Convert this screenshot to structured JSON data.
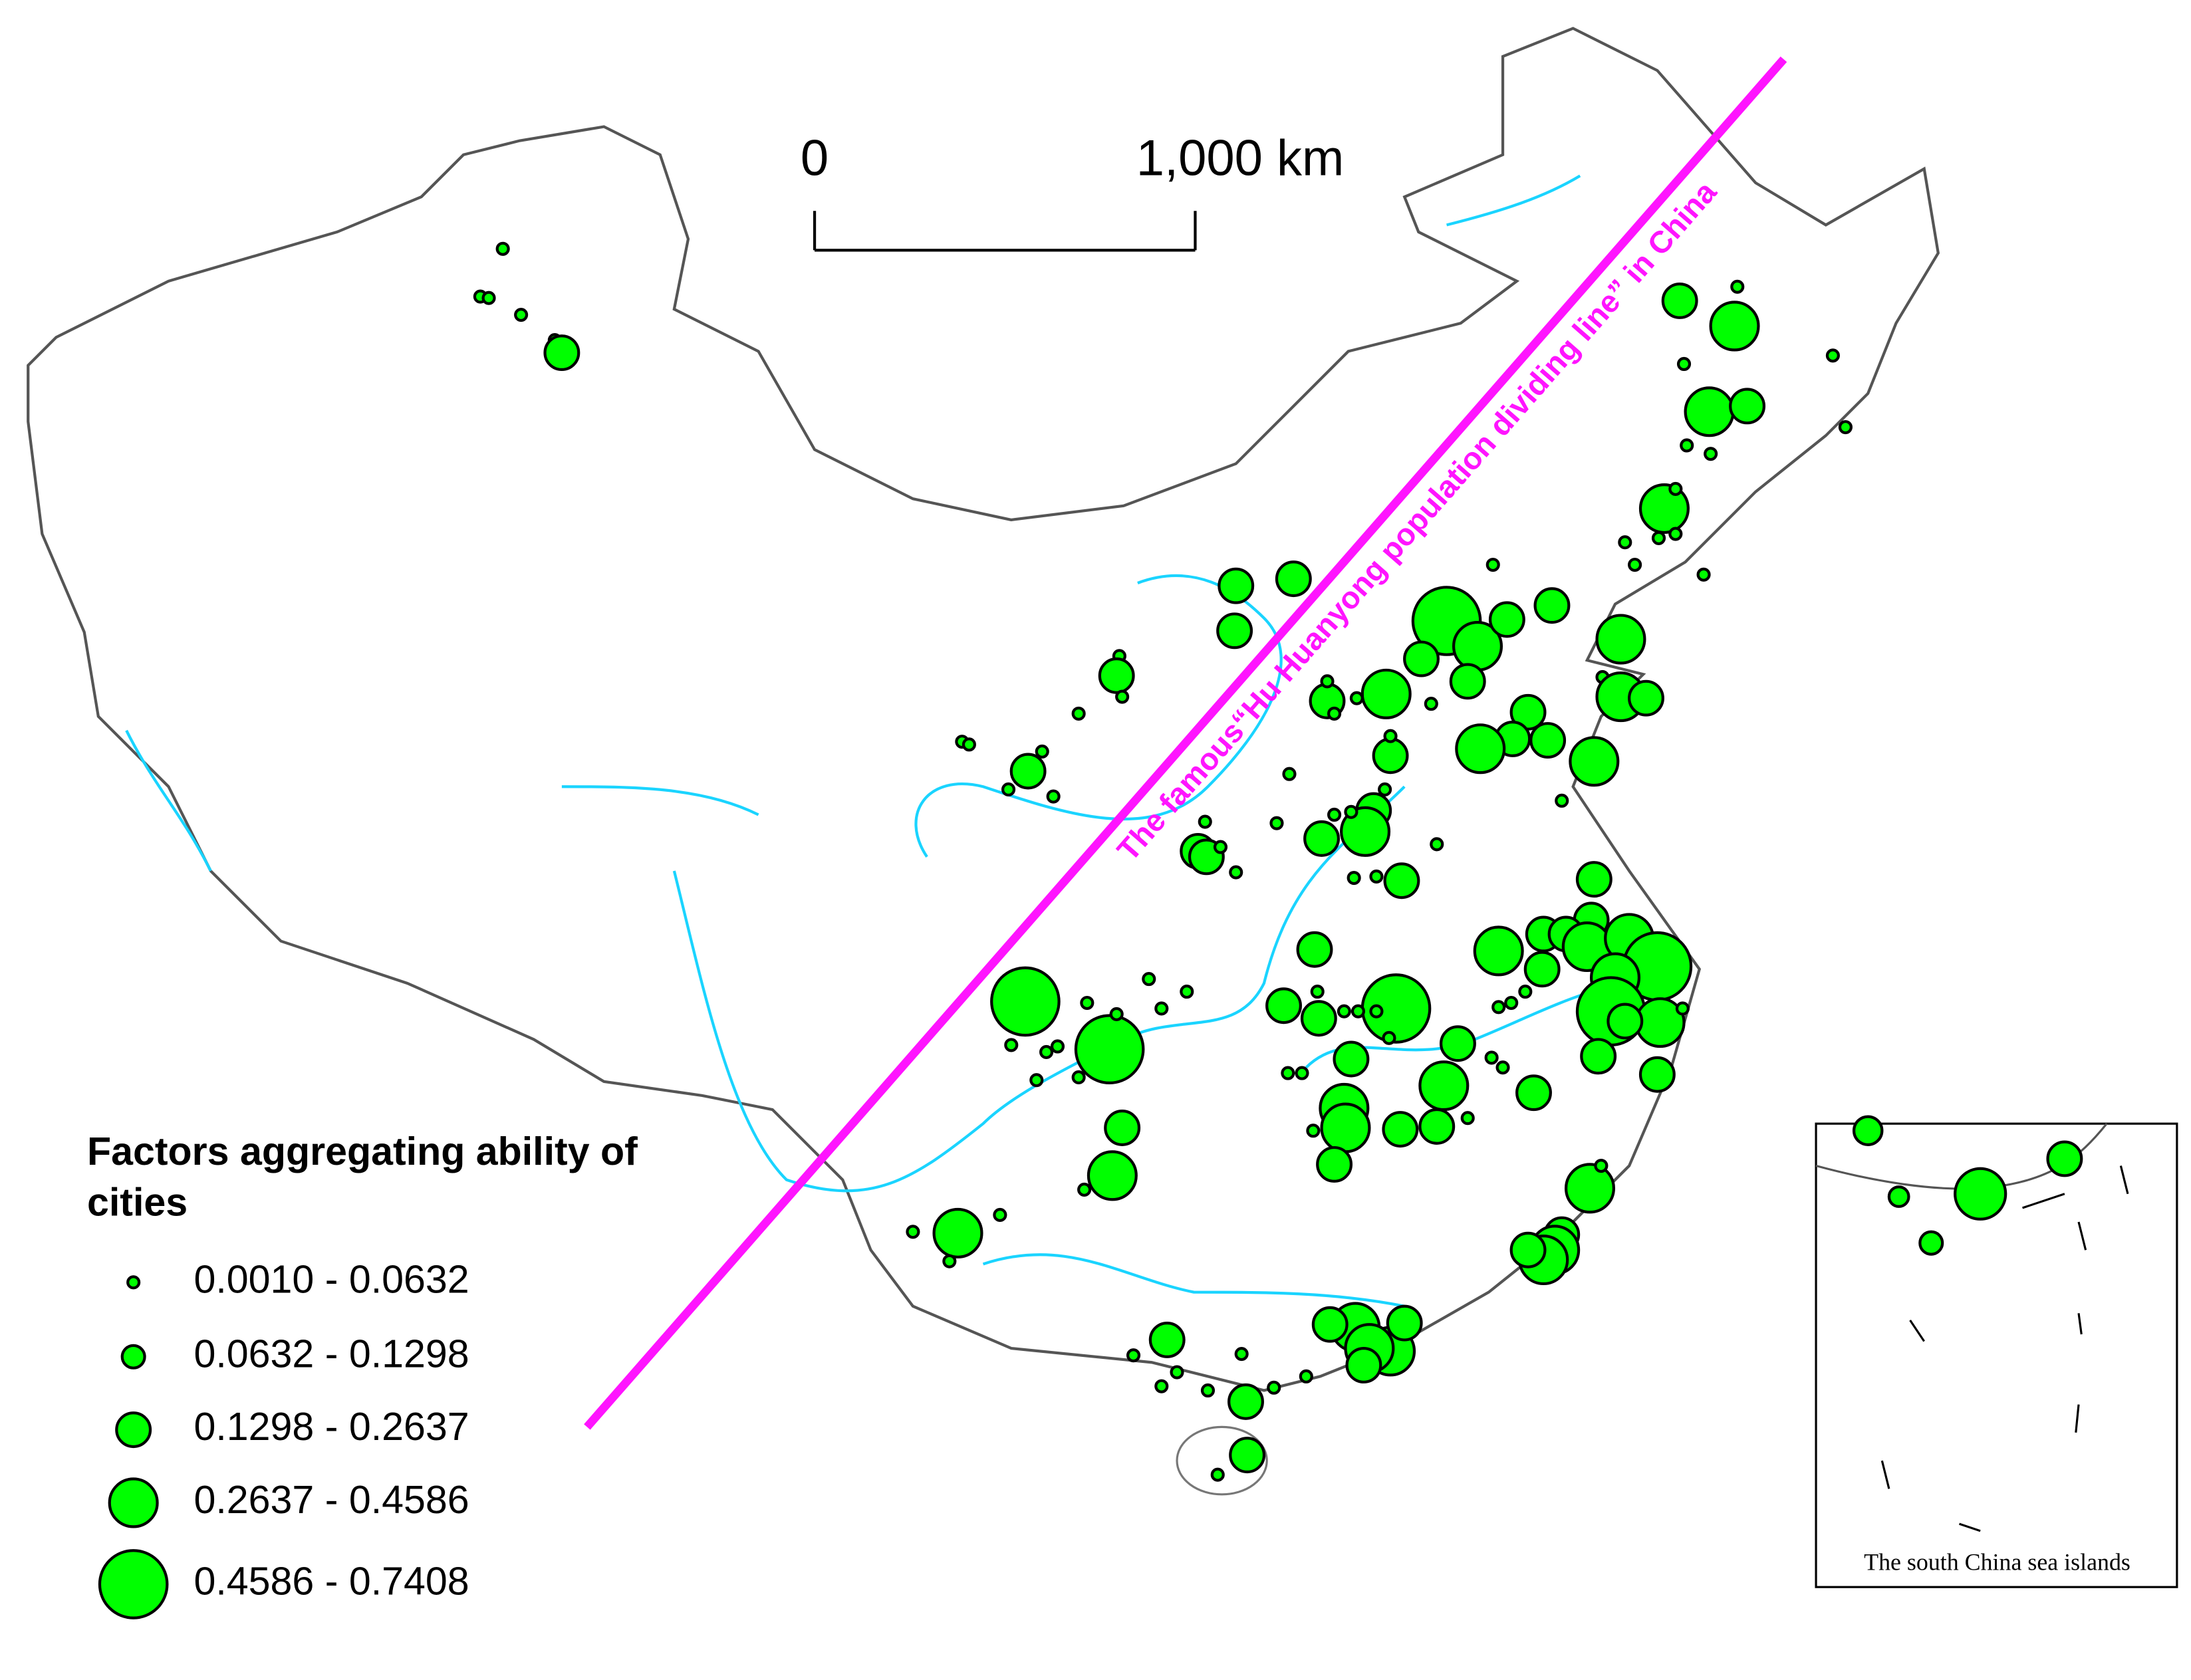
{
  "scale_bar": {
    "start_label": "0",
    "end_label": "1,000 km"
  },
  "annotation": "The famous“Hu Huanyong population dividing line” in China",
  "legend": {
    "title_line1": "Factors aggregating ability of",
    "title_line2": "cities",
    "items": [
      "0.0010 - 0.0632",
      "0.0632 - 0.1298",
      "0.1298 - 0.2637",
      "0.2637 - 0.4586",
      "0.4586 - 0.7408"
    ]
  },
  "inset": {
    "caption": "The south China sea islands"
  }
}
